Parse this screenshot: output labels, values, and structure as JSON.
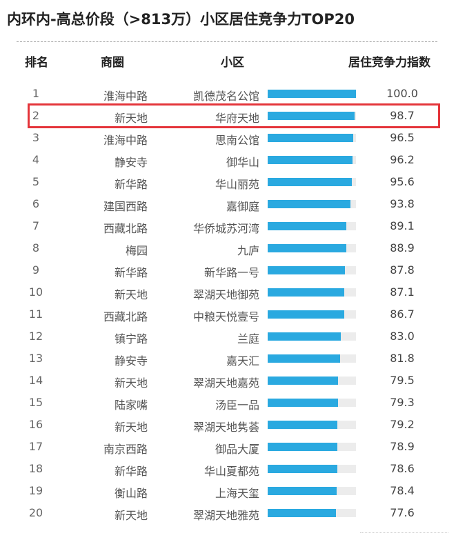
{
  "header": {
    "title": "内环内-高总价段（>813万）小区居住竞争力TOP20"
  },
  "columns": {
    "rank": "排名",
    "district": "商圈",
    "community": "小区",
    "score": "居住竞争力指数"
  },
  "colors": {
    "bar": "#2aa9e0",
    "track": "#ececec",
    "highlight": "#e4343a"
  },
  "highlighted_rank": 2,
  "chart_data": {
    "type": "bar",
    "orientation": "horizontal",
    "title": "内环内-高总价段（>813万）小区居住竞争力TOP20",
    "xlim": [
      0,
      100
    ],
    "grid": false,
    "columns": [
      "排名",
      "商圈",
      "小区",
      "居住竞争力指数"
    ],
    "rows": [
      {
        "rank": "1",
        "district": "淮海中路",
        "community": "凯德茂名公馆",
        "value": 100.0,
        "label": "100.0"
      },
      {
        "rank": "2",
        "district": "新天地",
        "community": "华府天地",
        "value": 98.7,
        "label": "98.7"
      },
      {
        "rank": "3",
        "district": "淮海中路",
        "community": "思南公馆",
        "value": 96.5,
        "label": "96.5"
      },
      {
        "rank": "4",
        "district": "静安寺",
        "community": "御华山",
        "value": 96.2,
        "label": "96.2"
      },
      {
        "rank": "5",
        "district": "新华路",
        "community": "华山丽苑",
        "value": 95.6,
        "label": "95.6"
      },
      {
        "rank": "6",
        "district": "建国西路",
        "community": "嘉御庭",
        "value": 93.8,
        "label": "93.8"
      },
      {
        "rank": "7",
        "district": "西藏北路",
        "community": "华侨城苏河湾",
        "value": 89.1,
        "label": "89.1"
      },
      {
        "rank": "8",
        "district": "梅园",
        "community": "九庐",
        "value": 88.9,
        "label": "88.9"
      },
      {
        "rank": "9",
        "district": "新华路",
        "community": "新华路一号",
        "value": 87.8,
        "label": "87.8"
      },
      {
        "rank": "10",
        "district": "新天地",
        "community": "翠湖天地御苑",
        "value": 87.1,
        "label": "87.1"
      },
      {
        "rank": "11",
        "district": "西藏北路",
        "community": "中粮天悦壹号",
        "value": 86.7,
        "label": "86.7"
      },
      {
        "rank": "12",
        "district": "镇宁路",
        "community": "兰庭",
        "value": 83.0,
        "label": "83.0"
      },
      {
        "rank": "13",
        "district": "静安寺",
        "community": "嘉天汇",
        "value": 81.8,
        "label": "81.8"
      },
      {
        "rank": "14",
        "district": "新天地",
        "community": "翠湖天地嘉苑",
        "value": 79.5,
        "label": "79.5"
      },
      {
        "rank": "15",
        "district": "陆家嘴",
        "community": "汤臣一品",
        "value": 79.3,
        "label": "79.3"
      },
      {
        "rank": "16",
        "district": "新天地",
        "community": "翠湖天地隽荟",
        "value": 79.2,
        "label": "79.2"
      },
      {
        "rank": "17",
        "district": "南京西路",
        "community": "御品大厦",
        "value": 78.9,
        "label": "78.9"
      },
      {
        "rank": "18",
        "district": "新华路",
        "community": "华山夏都苑",
        "value": 78.6,
        "label": "78.6"
      },
      {
        "rank": "19",
        "district": "衡山路",
        "community": "上海天玺",
        "value": 78.4,
        "label": "78.4"
      },
      {
        "rank": "20",
        "district": "新天地",
        "community": "翠湖天地雅苑",
        "value": 77.6,
        "label": "77.6"
      }
    ]
  }
}
